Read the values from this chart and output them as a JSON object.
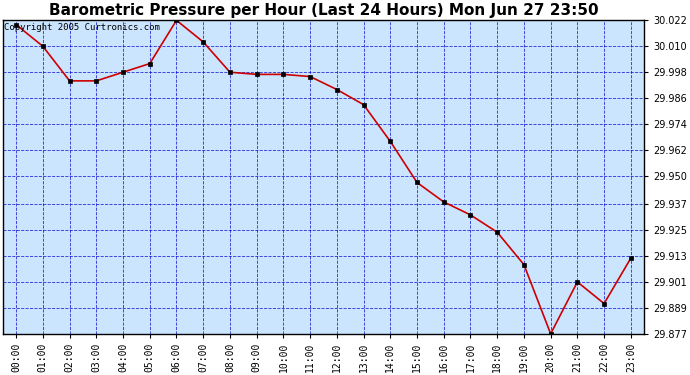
{
  "title": "Barometric Pressure per Hour (Last 24 Hours) Mon Jun 27 23:50",
  "copyright": "Copyright 2005 Curtronics.com",
  "x_labels": [
    "00:00",
    "01:00",
    "02:00",
    "03:00",
    "04:00",
    "05:00",
    "06:00",
    "07:00",
    "08:00",
    "09:00",
    "10:00",
    "11:00",
    "12:00",
    "13:00",
    "14:00",
    "15:00",
    "16:00",
    "17:00",
    "18:00",
    "19:00",
    "20:00",
    "21:00",
    "22:00",
    "23:00"
  ],
  "y_values": [
    30.02,
    30.01,
    29.994,
    29.994,
    29.998,
    30.002,
    30.022,
    30.012,
    29.998,
    29.997,
    29.997,
    29.996,
    29.99,
    29.983,
    29.966,
    29.947,
    29.938,
    29.932,
    29.924,
    29.909,
    29.877,
    29.901,
    29.891,
    29.912
  ],
  "ylim_min": 29.877,
  "ylim_max": 30.022,
  "yticks": [
    30.022,
    30.01,
    29.998,
    29.986,
    29.974,
    29.962,
    29.95,
    29.937,
    29.925,
    29.913,
    29.901,
    29.889,
    29.877
  ],
  "line_color": "#cc0000",
  "marker_color": "#000000",
  "plot_bg_color": "#cce5ff",
  "grid_color": "#0000cc",
  "title_fontsize": 11,
  "tick_fontsize": 7,
  "copyright_fontsize": 6.5
}
